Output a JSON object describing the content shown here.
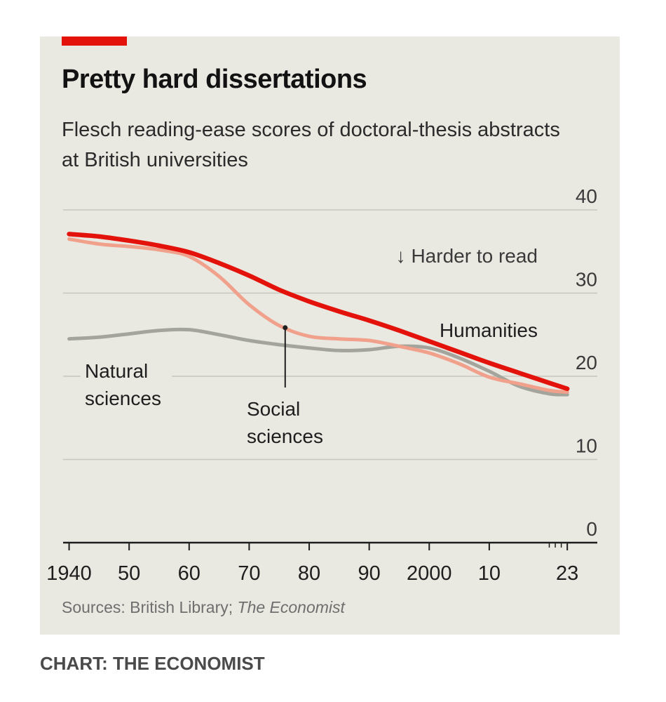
{
  "header": {
    "title": "Pretty hard dissertations",
    "subtitle": "Flesch reading-ease scores of doctoral-thesis abstracts at British universities"
  },
  "footer": {
    "source_prefix": "Sources: British Library; ",
    "source_italic": "The Economist",
    "credit": "CHART: THE ECONOMIST"
  },
  "annotation": {
    "direction": "↓ Harder to read"
  },
  "chart_data": {
    "type": "line",
    "title": "Pretty hard dissertations",
    "subtitle": "Flesch reading-ease scores of doctoral-thesis abstracts at British universities",
    "xlabel": "",
    "ylabel": "",
    "xlim": [
      1939,
      2028
    ],
    "ylim": [
      0,
      40
    ],
    "y_ticks": [
      0,
      10,
      20,
      30,
      40
    ],
    "y_axis_side": "right",
    "x_ticks": [
      {
        "value": 1940,
        "label": "1940"
      },
      {
        "value": 1950,
        "label": "50"
      },
      {
        "value": 1960,
        "label": "60"
      },
      {
        "value": 1970,
        "label": "70"
      },
      {
        "value": 1980,
        "label": "80"
      },
      {
        "value": 1990,
        "label": "90"
      },
      {
        "value": 2000,
        "label": "2000"
      },
      {
        "value": 2010,
        "label": "10"
      },
      {
        "value": 2023,
        "label": "23"
      }
    ],
    "x_minor_ticks": [
      2020,
      2021,
      2022
    ],
    "grid": true,
    "series": [
      {
        "name": "Natural sciences",
        "color": "#a3a49b",
        "x": [
          1940,
          1945,
          1950,
          1955,
          1960,
          1965,
          1970,
          1975,
          1980,
          1985,
          1990,
          1995,
          2000,
          2005,
          2010,
          2015,
          2020,
          2023
        ],
        "y": [
          24.5,
          24.7,
          25.1,
          25.5,
          25.6,
          25.0,
          24.3,
          23.8,
          23.4,
          23.1,
          23.2,
          23.6,
          23.4,
          22.2,
          20.6,
          18.8,
          17.9,
          17.8
        ]
      },
      {
        "name": "Social sciences",
        "color": "#f0a08b",
        "x": [
          1940,
          1945,
          1950,
          1955,
          1960,
          1965,
          1970,
          1975,
          1980,
          1985,
          1990,
          1995,
          2000,
          2005,
          2010,
          2015,
          2020,
          2023
        ],
        "y": [
          36.5,
          35.9,
          35.6,
          35.2,
          34.4,
          32.0,
          28.6,
          26.1,
          24.8,
          24.5,
          24.3,
          23.6,
          22.8,
          21.5,
          19.9,
          19.1,
          18.3,
          18.1
        ]
      },
      {
        "name": "Humanities",
        "color": "#e3120b",
        "x": [
          1940,
          1945,
          1950,
          1955,
          1960,
          1965,
          1970,
          1975,
          1980,
          1985,
          1990,
          1995,
          2000,
          2005,
          2010,
          2015,
          2020,
          2023
        ],
        "y": [
          37.1,
          36.8,
          36.3,
          35.7,
          34.9,
          33.6,
          32.1,
          30.4,
          29.0,
          27.8,
          26.7,
          25.5,
          24.2,
          22.9,
          21.6,
          20.4,
          19.2,
          18.5
        ]
      }
    ]
  }
}
